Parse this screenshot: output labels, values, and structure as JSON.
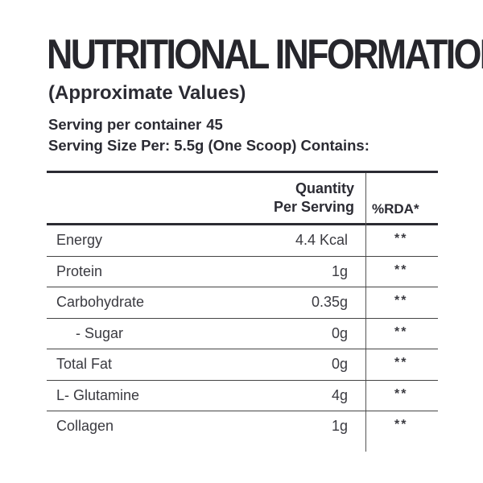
{
  "header": {
    "title": "NUTRITIONAL INFORMATION",
    "subtitle": "(Approximate Values)",
    "serving_per_container_label": "Serving per container",
    "serving_per_container_value": "45",
    "serving_size_text": "Serving Size Per: 5.5g (One Scoop) Contains:"
  },
  "table": {
    "col_quantity_line1": "Quantity",
    "col_quantity_line2": "Per Serving",
    "col_rda": "%RDA*",
    "rows": [
      {
        "name": "Energy",
        "quantity": "4.4 Kcal",
        "rda": "**"
      },
      {
        "name": "Protein",
        "quantity": "1g",
        "rda": "**"
      },
      {
        "name": "Carbohydrate",
        "quantity": "0.35g",
        "rda": "**"
      },
      {
        "name": "- Sugar",
        "quantity": "0g",
        "rda": "**"
      },
      {
        "name": "Total Fat",
        "quantity": "0g",
        "rda": "**"
      },
      {
        "name": "L- Glutamine",
        "quantity": "4g",
        "rda": "**"
      },
      {
        "name": "Collagen",
        "quantity": "1g",
        "rda": "**"
      }
    ]
  }
}
